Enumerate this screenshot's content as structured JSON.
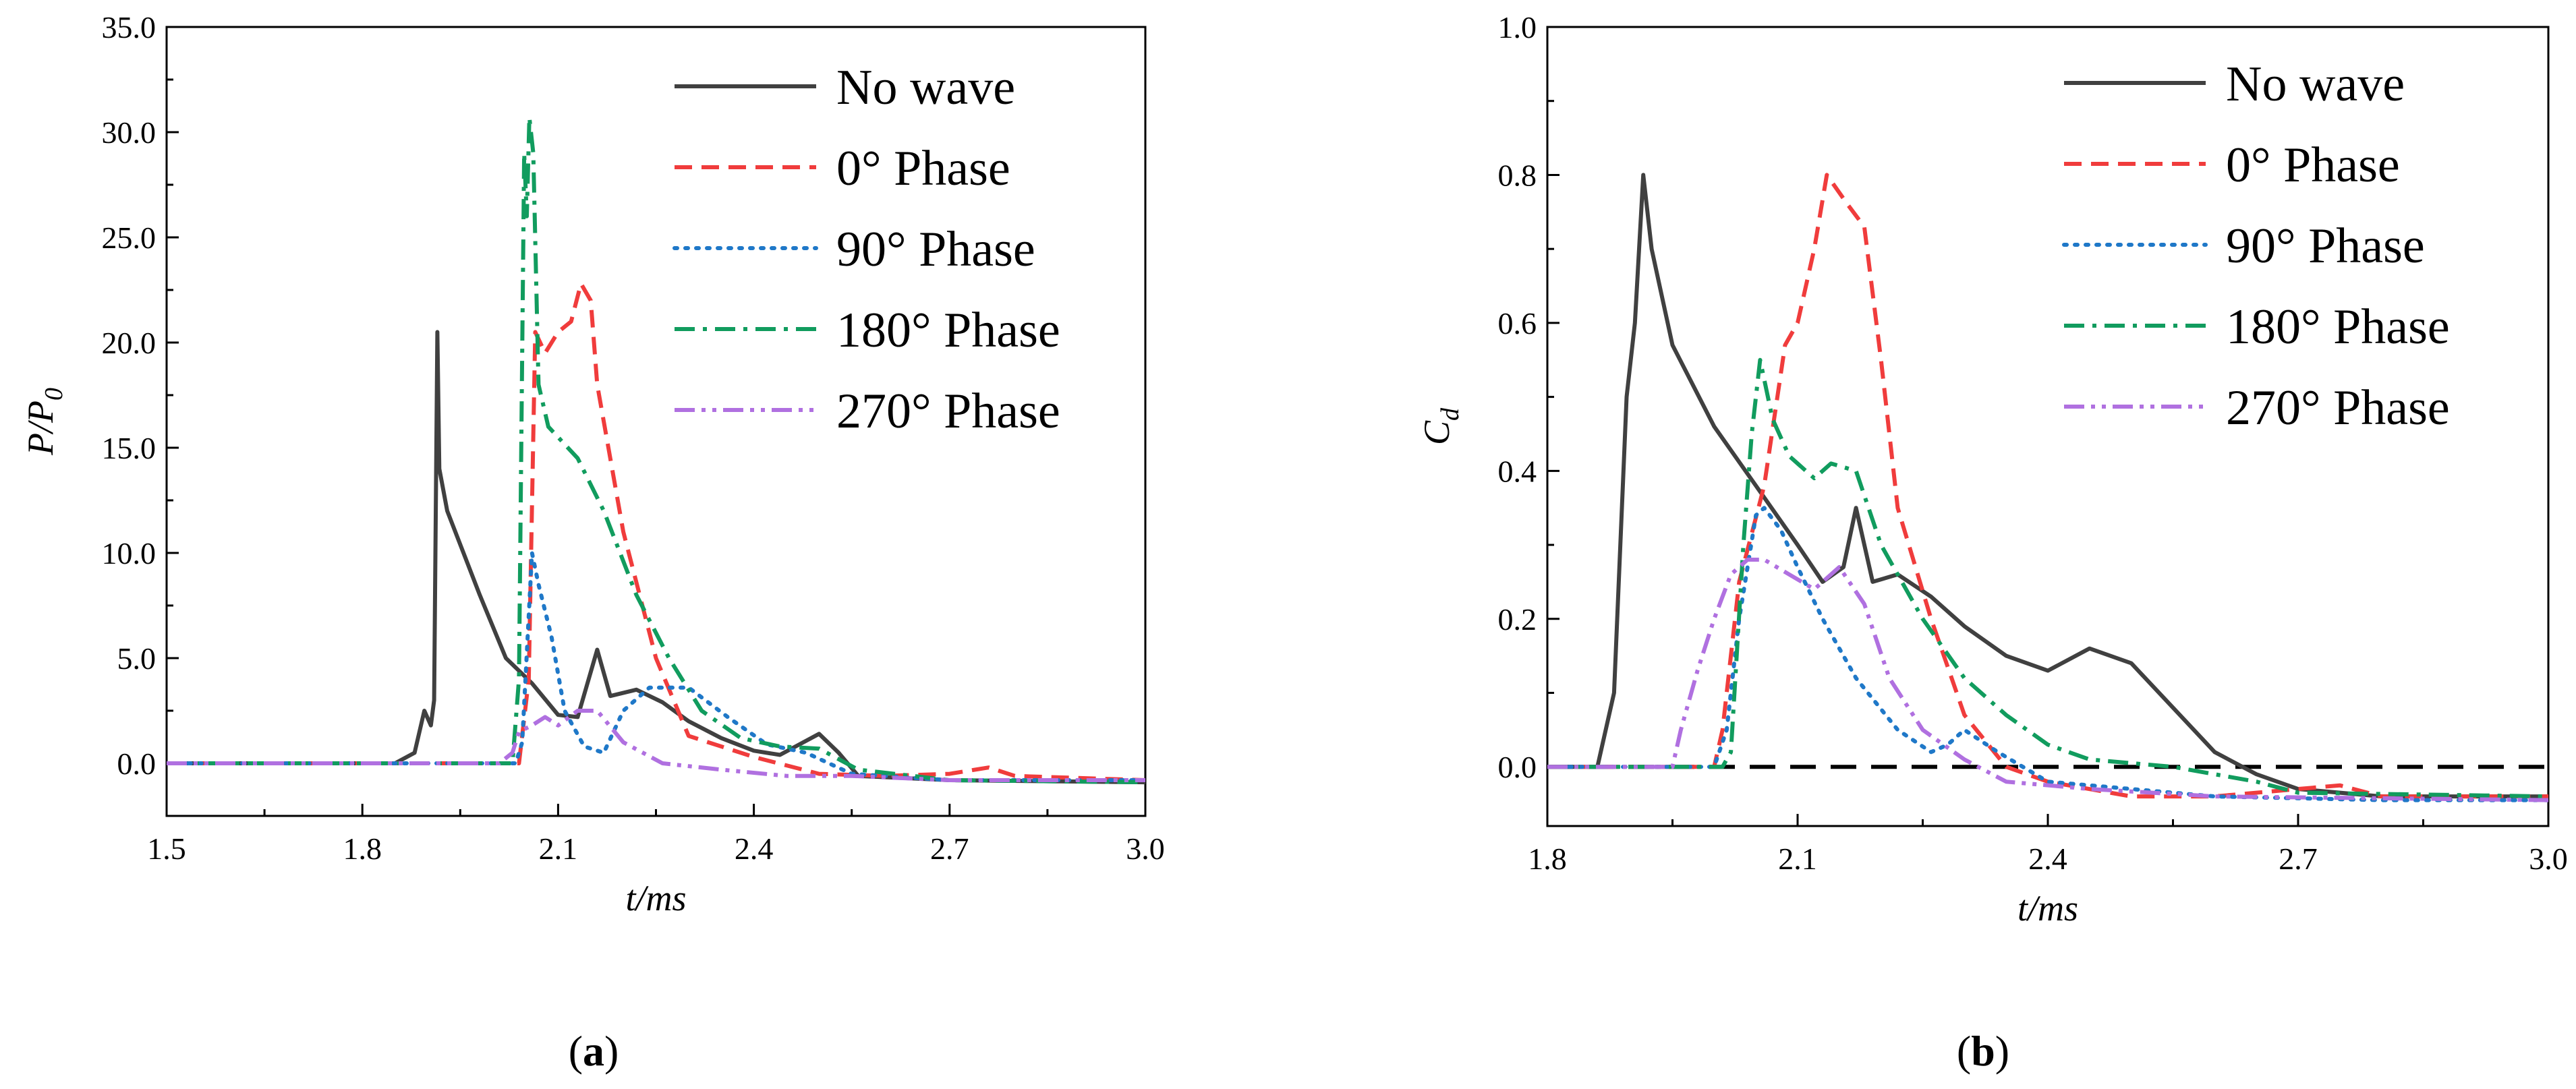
{
  "colors": {
    "no_wave": "#404040",
    "phase_0": "#f03c3c",
    "phase_90": "#1f78c8",
    "phase_180": "#119c5e",
    "phase_270": "#b070e0",
    "zero_line": "#000000"
  },
  "chart_data": [
    {
      "type": "line",
      "caption_open": "(",
      "caption_letter": "a",
      "caption_close": ")",
      "xlabel": "t/ms",
      "ylabel_main": "P/P",
      "ylabel_sub": "0",
      "xlim": [
        1.5,
        3.0
      ],
      "ylim": [
        -2.5,
        35.0
      ],
      "xticks": [
        "1.5",
        "1.8",
        "2.1",
        "2.4",
        "2.7",
        "3.0"
      ],
      "yticks": [
        "0.0",
        "5.0",
        "10.0",
        "15.0",
        "20.0",
        "25.0",
        "30.0",
        "35.0"
      ],
      "legend_position": "top-right",
      "series": [
        {
          "name": "No wave",
          "key": "no_wave",
          "dash": "solid",
          "points": [
            [
              1.5,
              0
            ],
            [
              1.85,
              0
            ],
            [
              1.88,
              0.5
            ],
            [
              1.895,
              2.5
            ],
            [
              1.905,
              1.8
            ],
            [
              1.91,
              3
            ],
            [
              1.915,
              20.5
            ],
            [
              1.918,
              14
            ],
            [
              1.93,
              12
            ],
            [
              1.98,
              8
            ],
            [
              2.02,
              5
            ],
            [
              2.06,
              3.8
            ],
            [
              2.1,
              2.3
            ],
            [
              2.13,
              2.2
            ],
            [
              2.16,
              5.4
            ],
            [
              2.18,
              3.2
            ],
            [
              2.22,
              3.5
            ],
            [
              2.26,
              2.9
            ],
            [
              2.3,
              2
            ],
            [
              2.35,
              1.2
            ],
            [
              2.4,
              0.6
            ],
            [
              2.44,
              0.4
            ],
            [
              2.47,
              0.9
            ],
            [
              2.5,
              1.4
            ],
            [
              2.53,
              0.5
            ],
            [
              2.56,
              -0.6
            ],
            [
              2.7,
              -0.8
            ],
            [
              3.0,
              -0.9
            ]
          ]
        },
        {
          "name": "0° Phase",
          "key": "phase_0",
          "dash": "dashed",
          "points": [
            [
              1.5,
              0
            ],
            [
              2.04,
              0
            ],
            [
              2.055,
              4
            ],
            [
              2.065,
              20.5
            ],
            [
              2.08,
              19.5
            ],
            [
              2.1,
              20.5
            ],
            [
              2.12,
              21
            ],
            [
              2.135,
              22.8
            ],
            [
              2.15,
              22
            ],
            [
              2.16,
              18
            ],
            [
              2.2,
              11
            ],
            [
              2.25,
              5
            ],
            [
              2.3,
              1.3
            ],
            [
              2.4,
              0.3
            ],
            [
              2.5,
              -0.5
            ],
            [
              2.6,
              -0.6
            ],
            [
              2.7,
              -0.5
            ],
            [
              2.76,
              -0.2
            ],
            [
              2.8,
              -0.6
            ],
            [
              3.0,
              -0.8
            ]
          ]
        },
        {
          "name": "90° Phase",
          "key": "phase_90",
          "dash": "dotted",
          "points": [
            [
              1.5,
              0
            ],
            [
              2.035,
              0
            ],
            [
              2.045,
              1
            ],
            [
              2.06,
              10
            ],
            [
              2.07,
              8.5
            ],
            [
              2.09,
              6
            ],
            [
              2.11,
              2.5
            ],
            [
              2.14,
              0.8
            ],
            [
              2.17,
              0.5
            ],
            [
              2.2,
              2.5
            ],
            [
              2.24,
              3.6
            ],
            [
              2.3,
              3.6
            ],
            [
              2.36,
              2.2
            ],
            [
              2.42,
              0.9
            ],
            [
              2.48,
              0.5
            ],
            [
              2.55,
              -0.5
            ],
            [
              2.7,
              -0.8
            ],
            [
              3.0,
              -0.8
            ]
          ]
        },
        {
          "name": "180° Phase",
          "key": "phase_180",
          "dash": "dashdot",
          "points": [
            [
              1.5,
              0
            ],
            [
              2.03,
              0
            ],
            [
              2.04,
              4
            ],
            [
              2.048,
              29
            ],
            [
              2.052,
              26
            ],
            [
              2.056,
              30.7
            ],
            [
              2.062,
              29
            ],
            [
              2.07,
              18
            ],
            [
              2.085,
              16
            ],
            [
              2.1,
              15.5
            ],
            [
              2.13,
              14.5
            ],
            [
              2.17,
              12
            ],
            [
              2.22,
              8
            ],
            [
              2.27,
              5
            ],
            [
              2.32,
              2.5
            ],
            [
              2.38,
              1.2
            ],
            [
              2.44,
              0.8
            ],
            [
              2.5,
              0.7
            ],
            [
              2.56,
              -0.3
            ],
            [
              2.7,
              -0.8
            ],
            [
              3.0,
              -0.9
            ]
          ]
        },
        {
          "name": "270° Phase",
          "key": "phase_270",
          "dash": "dashdotdot",
          "points": [
            [
              1.5,
              0
            ],
            [
              2.01,
              0
            ],
            [
              2.03,
              0.5
            ],
            [
              2.04,
              1.5
            ],
            [
              2.06,
              1.8
            ],
            [
              2.08,
              2.2
            ],
            [
              2.1,
              1.8
            ],
            [
              2.13,
              2.5
            ],
            [
              2.16,
              2.5
            ],
            [
              2.2,
              1
            ],
            [
              2.26,
              0
            ],
            [
              2.35,
              -0.3
            ],
            [
              2.45,
              -0.6
            ],
            [
              2.55,
              -0.6
            ],
            [
              2.7,
              -0.8
            ],
            [
              3.0,
              -0.8
            ]
          ]
        }
      ]
    },
    {
      "type": "line",
      "caption_open": "(",
      "caption_letter": "b",
      "caption_close": ")",
      "xlabel": "t/ms",
      "ylabel_main": "C",
      "ylabel_sub": "d",
      "xlim": [
        1.8,
        3.0
      ],
      "ylim": [
        -0.08,
        1.0
      ],
      "xticks": [
        "1.8",
        "2.1",
        "2.4",
        "2.7",
        "3.0"
      ],
      "yticks": [
        "0.0",
        "0.2",
        "0.4",
        "0.6",
        "0.8",
        "1.0"
      ],
      "legend_position": "top-right",
      "zero_line": true,
      "series": [
        {
          "name": "No wave",
          "key": "no_wave",
          "dash": "solid",
          "points": [
            [
              1.8,
              0
            ],
            [
              1.86,
              0
            ],
            [
              1.88,
              0.1
            ],
            [
              1.895,
              0.5
            ],
            [
              1.905,
              0.6
            ],
            [
              1.915,
              0.8
            ],
            [
              1.925,
              0.7
            ],
            [
              1.95,
              0.57
            ],
            [
              2.0,
              0.46
            ],
            [
              2.05,
              0.38
            ],
            [
              2.1,
              0.3
            ],
            [
              2.13,
              0.25
            ],
            [
              2.155,
              0.27
            ],
            [
              2.17,
              0.35
            ],
            [
              2.19,
              0.25
            ],
            [
              2.22,
              0.26
            ],
            [
              2.26,
              0.23
            ],
            [
              2.3,
              0.19
            ],
            [
              2.35,
              0.15
            ],
            [
              2.4,
              0.13
            ],
            [
              2.45,
              0.16
            ],
            [
              2.5,
              0.14
            ],
            [
              2.55,
              0.08
            ],
            [
              2.6,
              0.02
            ],
            [
              2.65,
              -0.01
            ],
            [
              2.7,
              -0.03
            ],
            [
              2.8,
              -0.04
            ],
            [
              3.0,
              -0.04
            ]
          ]
        },
        {
          "name": "0° Phase",
          "key": "phase_0",
          "dash": "dashed",
          "points": [
            [
              1.8,
              0
            ],
            [
              2.0,
              0
            ],
            [
              2.01,
              0.05
            ],
            [
              2.03,
              0.25
            ],
            [
              2.06,
              0.38
            ],
            [
              2.085,
              0.57
            ],
            [
              2.1,
              0.6
            ],
            [
              2.12,
              0.7
            ],
            [
              2.135,
              0.8
            ],
            [
              2.16,
              0.76
            ],
            [
              2.18,
              0.73
            ],
            [
              2.2,
              0.55
            ],
            [
              2.22,
              0.35
            ],
            [
              2.26,
              0.2
            ],
            [
              2.3,
              0.07
            ],
            [
              2.35,
              0.0
            ],
            [
              2.4,
              -0.02
            ],
            [
              2.5,
              -0.04
            ],
            [
              2.6,
              -0.04
            ],
            [
              2.7,
              -0.03
            ],
            [
              2.75,
              -0.025
            ],
            [
              2.8,
              -0.04
            ],
            [
              3.0,
              -0.04
            ]
          ]
        },
        {
          "name": "90° Phase",
          "key": "phase_90",
          "dash": "dotted",
          "points": [
            [
              1.8,
              0
            ],
            [
              2.0,
              0
            ],
            [
              2.015,
              0.05
            ],
            [
              2.03,
              0.2
            ],
            [
              2.05,
              0.34
            ],
            [
              2.06,
              0.35
            ],
            [
              2.08,
              0.32
            ],
            [
              2.1,
              0.27
            ],
            [
              2.13,
              0.2
            ],
            [
              2.17,
              0.12
            ],
            [
              2.22,
              0.05
            ],
            [
              2.26,
              0.02
            ],
            [
              2.28,
              0.03
            ],
            [
              2.3,
              0.05
            ],
            [
              2.34,
              0.02
            ],
            [
              2.4,
              -0.02
            ],
            [
              2.5,
              -0.03
            ],
            [
              2.6,
              -0.04
            ],
            [
              2.8,
              -0.045
            ],
            [
              3.0,
              -0.045
            ]
          ]
        },
        {
          "name": "180° Phase",
          "key": "phase_180",
          "dash": "dashdot",
          "points": [
            [
              1.8,
              0
            ],
            [
              2.01,
              0
            ],
            [
              2.02,
              0.02
            ],
            [
              2.035,
              0.3
            ],
            [
              2.045,
              0.45
            ],
            [
              2.055,
              0.55
            ],
            [
              2.07,
              0.47
            ],
            [
              2.09,
              0.42
            ],
            [
              2.12,
              0.39
            ],
            [
              2.14,
              0.41
            ],
            [
              2.17,
              0.4
            ],
            [
              2.2,
              0.3
            ],
            [
              2.25,
              0.2
            ],
            [
              2.3,
              0.12
            ],
            [
              2.35,
              0.07
            ],
            [
              2.4,
              0.03
            ],
            [
              2.45,
              0.01
            ],
            [
              2.55,
              0.0
            ],
            [
              2.65,
              -0.02
            ],
            [
              2.7,
              -0.035
            ],
            [
              3.0,
              -0.04
            ]
          ]
        },
        {
          "name": "270° Phase",
          "key": "phase_270",
          "dash": "dashdotdot",
          "points": [
            [
              1.8,
              0
            ],
            [
              1.95,
              0
            ],
            [
              1.96,
              0.05
            ],
            [
              1.98,
              0.13
            ],
            [
              2.0,
              0.2
            ],
            [
              2.02,
              0.26
            ],
            [
              2.04,
              0.28
            ],
            [
              2.06,
              0.28
            ],
            [
              2.09,
              0.26
            ],
            [
              2.12,
              0.24
            ],
            [
              2.15,
              0.27
            ],
            [
              2.18,
              0.22
            ],
            [
              2.21,
              0.12
            ],
            [
              2.25,
              0.05
            ],
            [
              2.3,
              0.01
            ],
            [
              2.35,
              -0.02
            ],
            [
              2.45,
              -0.03
            ],
            [
              2.6,
              -0.04
            ],
            [
              3.0,
              -0.045
            ]
          ]
        }
      ]
    }
  ]
}
